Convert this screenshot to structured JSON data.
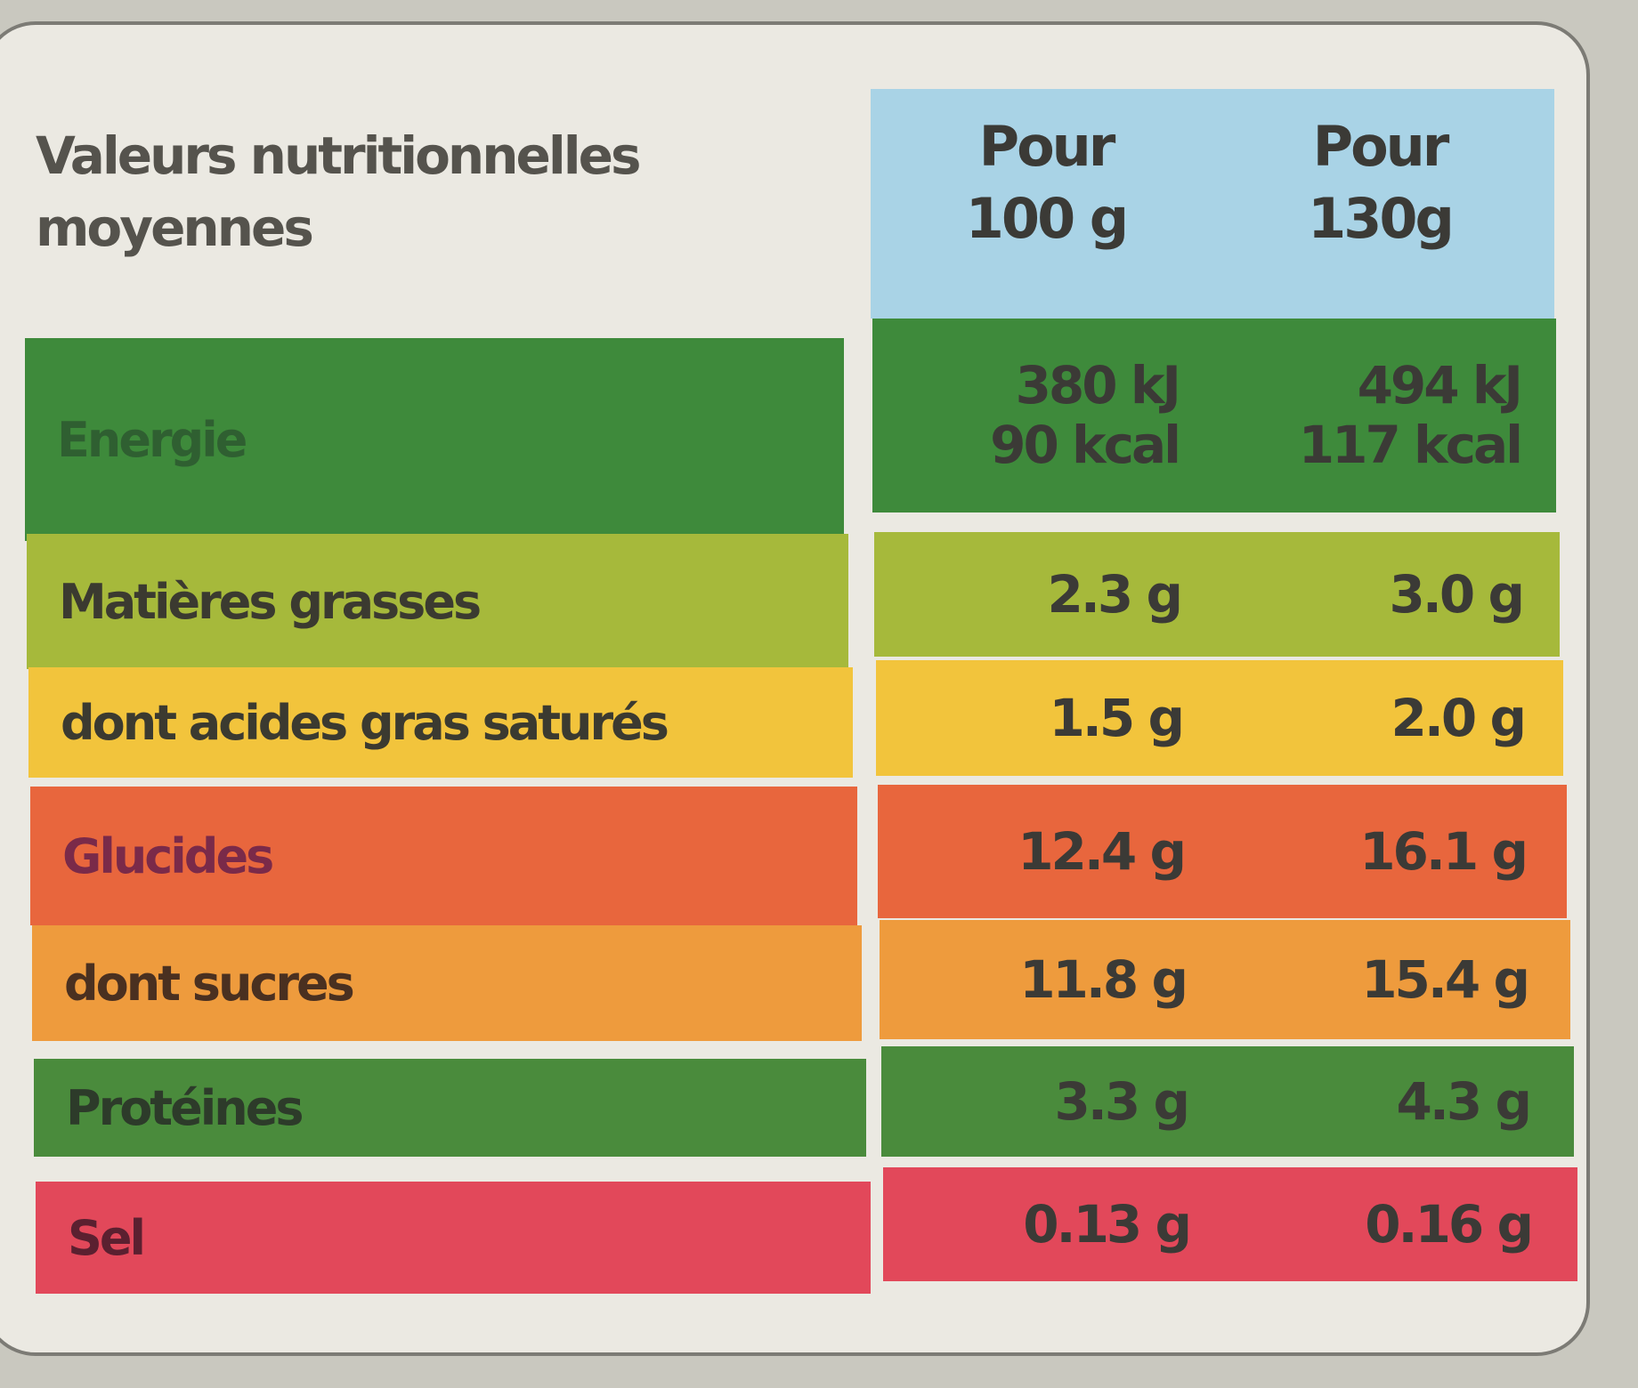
{
  "header": {
    "title_lines": [
      "Valeurs nutritionnelles",
      "moyennes"
    ],
    "columns": [
      [
        "Pour",
        "100 g"
      ],
      [
        "Pour",
        "130g"
      ]
    ]
  },
  "table": {
    "rows": [
      {
        "label": "Energie",
        "values": [
          [
            "380 kJ",
            "90 kcal"
          ],
          [
            "494 kJ",
            "117 kcal"
          ]
        ]
      },
      {
        "label": "Matières grasses",
        "values": [
          [
            "2.3 g"
          ],
          [
            "3.0 g"
          ]
        ]
      },
      {
        "label": "dont acides gras saturés",
        "values": [
          [
            "1.5 g"
          ],
          [
            "2.0 g"
          ]
        ]
      },
      {
        "label": "Glucides",
        "values": [
          [
            "12.4 g"
          ],
          [
            "16.1 g"
          ]
        ]
      },
      {
        "label": "dont sucres",
        "values": [
          [
            "11.8 g"
          ],
          [
            "15.4 g"
          ]
        ]
      },
      {
        "label": "Protéines",
        "values": [
          [
            "3.3 g"
          ],
          [
            "4.3 g"
          ]
        ]
      },
      {
        "label": "Sel",
        "values": [
          [
            "0.13 g"
          ],
          [
            "0.16 g"
          ]
        ]
      }
    ]
  }
}
